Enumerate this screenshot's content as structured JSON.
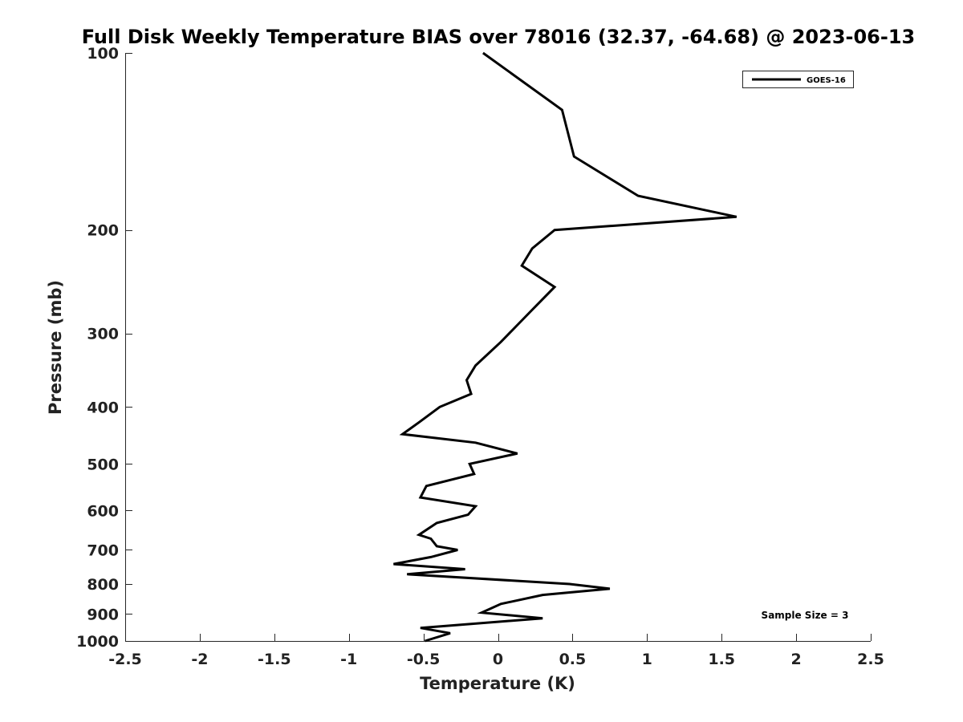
{
  "chart_data": {
    "type": "line",
    "title": "Full Disk Weekly Temperature BIAS over 78016 (32.37, -64.68) @ 2023-06-13",
    "xlabel": "Temperature (K)",
    "ylabel": "Pressure (mb)",
    "xlim": [
      -2.5,
      2.5
    ],
    "ylim": [
      100,
      1000
    ],
    "y_scale": "log",
    "y_reversed": true,
    "grid": false,
    "legend_position": "top-right",
    "x_ticks": [
      "-2.5",
      "-2",
      "-1.5",
      "-1",
      "-0.5",
      "0",
      "0.5",
      "1",
      "1.5",
      "2",
      "2.5"
    ],
    "x_tick_values": [
      -2.5,
      -2,
      -1.5,
      -1,
      -0.5,
      0,
      0.5,
      1,
      1.5,
      2,
      2.5
    ],
    "y_ticks": [
      "100",
      "200",
      "300",
      "400",
      "500",
      "600",
      "700",
      "800",
      "900",
      "1000"
    ],
    "y_tick_values": [
      100,
      200,
      300,
      400,
      500,
      600,
      700,
      800,
      900,
      1000
    ],
    "series": [
      {
        "name": "GOES-16",
        "color": "#000000",
        "points": [
          {
            "x": -0.1,
            "p": 100
          },
          {
            "x": 0.43,
            "p": 125
          },
          {
            "x": 0.51,
            "p": 150
          },
          {
            "x": 0.94,
            "p": 175
          },
          {
            "x": 1.6,
            "p": 190
          },
          {
            "x": 0.38,
            "p": 200
          },
          {
            "x": 0.23,
            "p": 215
          },
          {
            "x": 0.16,
            "p": 230
          },
          {
            "x": 0.38,
            "p": 250
          },
          {
            "x": 0.22,
            "p": 275
          },
          {
            "x": 0.02,
            "p": 310
          },
          {
            "x": -0.15,
            "p": 340
          },
          {
            "x": -0.21,
            "p": 360
          },
          {
            "x": -0.18,
            "p": 380
          },
          {
            "x": -0.39,
            "p": 400
          },
          {
            "x": -0.53,
            "p": 425
          },
          {
            "x": -0.64,
            "p": 445
          },
          {
            "x": -0.15,
            "p": 460
          },
          {
            "x": 0.13,
            "p": 480
          },
          {
            "x": -0.19,
            "p": 500
          },
          {
            "x": -0.16,
            "p": 520
          },
          {
            "x": -0.48,
            "p": 545
          },
          {
            "x": -0.52,
            "p": 570
          },
          {
            "x": -0.15,
            "p": 590
          },
          {
            "x": -0.2,
            "p": 610
          },
          {
            "x": -0.41,
            "p": 630
          },
          {
            "x": -0.53,
            "p": 660
          },
          {
            "x": -0.45,
            "p": 670
          },
          {
            "x": -0.41,
            "p": 690
          },
          {
            "x": -0.27,
            "p": 700
          },
          {
            "x": -0.45,
            "p": 720
          },
          {
            "x": -0.7,
            "p": 740
          },
          {
            "x": -0.22,
            "p": 755
          },
          {
            "x": -0.61,
            "p": 770
          },
          {
            "x": 0.48,
            "p": 800
          },
          {
            "x": 0.75,
            "p": 815
          },
          {
            "x": 0.3,
            "p": 835
          },
          {
            "x": 0.02,
            "p": 865
          },
          {
            "x": -0.11,
            "p": 895
          },
          {
            "x": 0.3,
            "p": 915
          },
          {
            "x": -0.52,
            "p": 950
          },
          {
            "x": -0.32,
            "p": 970
          },
          {
            "x": -0.49,
            "p": 1000
          }
        ]
      }
    ],
    "annotation": "Sample Size = 3"
  }
}
